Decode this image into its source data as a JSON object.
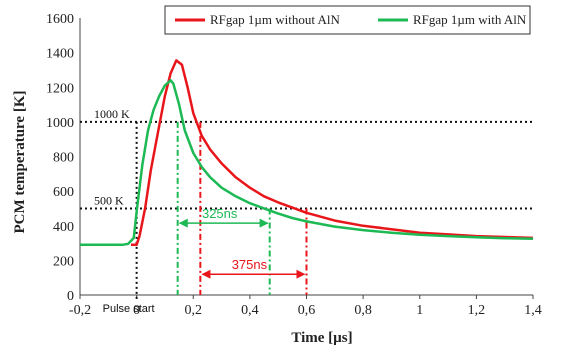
{
  "chart_data": {
    "type": "line",
    "xlabel": "Time [µs]",
    "ylabel": "PCM temperature [K]",
    "xlim": [
      -0.2,
      1.4
    ],
    "ylim": [
      0,
      1600
    ],
    "x_ticks": [
      "-0,2",
      "0",
      "0,2",
      "0,4",
      "0,6",
      "0,8",
      "1",
      "1,2",
      "1,4"
    ],
    "y_ticks": [
      "0",
      "200",
      "400",
      "600",
      "800",
      "1000",
      "1200",
      "1400",
      "1600"
    ],
    "grid": false,
    "legend_position": "top",
    "series": [
      {
        "name": "RFgap 1µm without AlN",
        "color": "#e8161b",
        "x": [
          -0.02,
          0.0,
          0.01,
          0.03,
          0.05,
          0.08,
          0.1,
          0.12,
          0.14,
          0.16,
          0.18,
          0.2,
          0.23,
          0.26,
          0.3,
          0.35,
          0.4,
          0.45,
          0.5,
          0.55,
          0.6,
          0.7,
          0.8,
          0.9,
          1.0,
          1.1,
          1.2,
          1.3,
          1.4
        ],
        "y": [
          290,
          290,
          340,
          500,
          720,
          980,
          1150,
          1280,
          1355,
          1330,
          1200,
          1050,
          920,
          840,
          760,
          680,
          620,
          570,
          535,
          505,
          475,
          430,
          400,
          380,
          360,
          350,
          340,
          335,
          330
        ]
      },
      {
        "name": "RFgap 1µm with AlN",
        "color": "#1db954",
        "x": [
          -0.2,
          -0.05,
          -0.03,
          -0.01,
          0.0,
          0.02,
          0.04,
          0.06,
          0.08,
          0.1,
          0.12,
          0.13,
          0.15,
          0.17,
          0.2,
          0.23,
          0.26,
          0.3,
          0.35,
          0.4,
          0.45,
          0.5,
          0.55,
          0.6,
          0.7,
          0.8,
          0.9,
          1.0,
          1.1,
          1.2,
          1.3,
          1.4
        ],
        "y": [
          290,
          290,
          295,
          330,
          480,
          750,
          950,
          1070,
          1150,
          1210,
          1240,
          1220,
          1100,
          950,
          820,
          740,
          680,
          620,
          570,
          530,
          500,
          470,
          445,
          425,
          395,
          375,
          360,
          348,
          340,
          333,
          328,
          325
        ]
      }
    ],
    "annotations": {
      "threshold_1000": {
        "label": "1000 K",
        "value": 1000,
        "x_start": 0.0
      },
      "threshold_500": {
        "label": "500 K",
        "value": 500,
        "x_start": 0.0
      },
      "pulse_start": {
        "label": "Pulse start",
        "x": 0.0
      },
      "dur_green": {
        "label": "325ns",
        "color": "#1db954",
        "x_start": 0.145,
        "x_end": 0.47,
        "y": 415,
        "marker_top": 1000
      },
      "dur_red": {
        "label": "375ns",
        "color": "#e8161b",
        "x_start": 0.225,
        "x_end": 0.6,
        "y": 120,
        "marker_top": 1000
      }
    }
  }
}
